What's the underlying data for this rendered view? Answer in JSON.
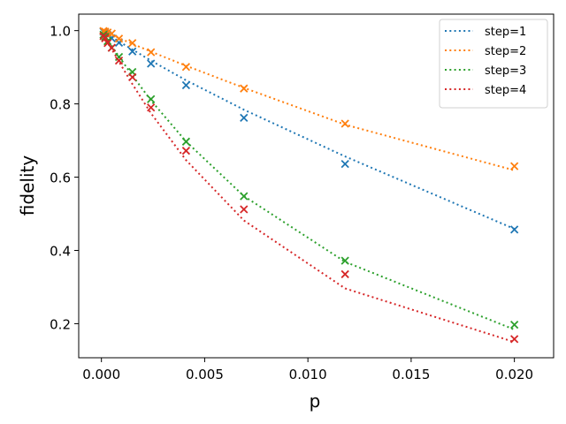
{
  "chart_data": {
    "type": "line",
    "title": "",
    "xlabel": "p",
    "ylabel": "fidelity",
    "xlim": [
      -0.0011,
      0.0219
    ],
    "ylim": [
      0.107,
      1.045
    ],
    "xticks": [
      0.0,
      0.005,
      0.01,
      0.015,
      0.02
    ],
    "xtick_labels": [
      "0.000",
      "0.005",
      "0.010",
      "0.015",
      "0.020"
    ],
    "yticks": [
      0.2,
      0.4,
      0.6,
      0.8,
      1.0
    ],
    "ytick_labels": [
      "0.2",
      "0.4",
      "0.6",
      "0.8",
      "1.0"
    ],
    "legend_position": "top-right",
    "x": [
      0.0001,
      0.00018,
      0.0003,
      0.0005,
      0.00085,
      0.0015,
      0.0024,
      0.0041,
      0.0069,
      0.0118,
      0.02
    ],
    "series": [
      {
        "name": "step=1",
        "color": "#1f77b4",
        "points": [
          0.997,
          0.993,
          0.988,
          0.979,
          0.967,
          0.943,
          0.91,
          0.851,
          0.762,
          0.636,
          0.457
        ],
        "fit": [
          0.9965,
          0.9938,
          0.9896,
          0.9826,
          0.9706,
          0.9483,
          0.9181,
          0.8644,
          0.7841,
          0.6565,
          0.4588
        ]
      },
      {
        "name": "step=2",
        "color": "#ff7f0e",
        "points": [
          0.999,
          0.997,
          0.995,
          0.992,
          0.978,
          0.966,
          0.941,
          0.901,
          0.842,
          0.746,
          0.63
        ],
        "fit": [
          0.9976,
          0.9957,
          0.9928,
          0.988,
          0.9797,
          0.9641,
          0.9428,
          0.9039,
          0.8438,
          0.7433,
          0.6186
        ]
      },
      {
        "name": "step=3",
        "color": "#2ca02c",
        "points": [
          0.989,
          0.983,
          0.971,
          0.953,
          0.928,
          0.887,
          0.813,
          0.697,
          0.548,
          0.372,
          0.197
        ],
        "fit": [
          0.9914,
          0.9846,
          0.9744,
          0.9576,
          0.9293,
          0.8775,
          0.8094,
          0.6972,
          0.5483,
          0.3689,
          0.184
        ]
      },
      {
        "name": "step=4",
        "color": "#d62728",
        "points": [
          0.985,
          0.979,
          0.966,
          0.953,
          0.918,
          0.873,
          0.79,
          0.672,
          0.512,
          0.335,
          0.158
        ],
        "fit": [
          0.9896,
          0.9814,
          0.9692,
          0.9492,
          0.9153,
          0.8541,
          0.7744,
          0.6463,
          0.4817,
          0.2963,
          0.1499
        ]
      }
    ]
  }
}
